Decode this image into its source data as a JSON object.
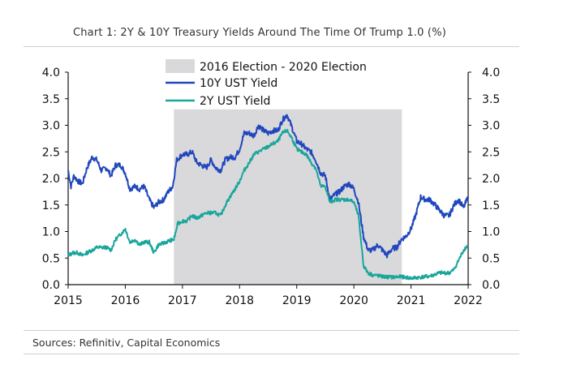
{
  "title": "Chart 1: 2Y & 10Y Treasury Yields Around The Time Of Trump 1.0 (%)",
  "source": "Sources: Refinitiv, Capital Economics",
  "colors": {
    "ten_year": "#2147bd",
    "two_year": "#1aa69b",
    "shade": "#d9d9dc"
  },
  "chart_data": {
    "type": "line",
    "xlim": [
      2015,
      2022
    ],
    "ylim": [
      0,
      4
    ],
    "x_ticks": [
      "2015",
      "2016",
      "2017",
      "2018",
      "2019",
      "2020",
      "2021",
      "2022"
    ],
    "y_ticks": [
      "0.0",
      "0.5",
      "1.0",
      "1.5",
      "2.0",
      "2.5",
      "3.0",
      "3.5",
      "4.0"
    ],
    "shaded_region": {
      "label": "2016 Election - 2020 Election",
      "x": [
        2016.85,
        2020.84
      ],
      "y_top": 3.3
    },
    "legend_position": "top-center",
    "series": [
      {
        "name": "10Y UST Yield",
        "color": "#2147bd",
        "points": [
          [
            2015.0,
            2.15
          ],
          [
            2015.05,
            1.85
          ],
          [
            2015.1,
            2.05
          ],
          [
            2015.17,
            1.95
          ],
          [
            2015.25,
            1.9
          ],
          [
            2015.33,
            2.2
          ],
          [
            2015.42,
            2.4
          ],
          [
            2015.5,
            2.35
          ],
          [
            2015.58,
            2.15
          ],
          [
            2015.67,
            2.2
          ],
          [
            2015.75,
            2.05
          ],
          [
            2015.83,
            2.25
          ],
          [
            2015.92,
            2.25
          ],
          [
            2016.0,
            2.1
          ],
          [
            2016.08,
            1.8
          ],
          [
            2016.17,
            1.85
          ],
          [
            2016.25,
            1.8
          ],
          [
            2016.33,
            1.85
          ],
          [
            2016.42,
            1.6
          ],
          [
            2016.5,
            1.45
          ],
          [
            2016.58,
            1.55
          ],
          [
            2016.67,
            1.6
          ],
          [
            2016.75,
            1.75
          ],
          [
            2016.83,
            1.85
          ],
          [
            2016.9,
            2.35
          ],
          [
            2017.0,
            2.45
          ],
          [
            2017.08,
            2.45
          ],
          [
            2017.17,
            2.5
          ],
          [
            2017.25,
            2.3
          ],
          [
            2017.33,
            2.25
          ],
          [
            2017.42,
            2.2
          ],
          [
            2017.5,
            2.35
          ],
          [
            2017.58,
            2.2
          ],
          [
            2017.67,
            2.15
          ],
          [
            2017.75,
            2.35
          ],
          [
            2017.83,
            2.4
          ],
          [
            2017.92,
            2.4
          ],
          [
            2018.0,
            2.55
          ],
          [
            2018.08,
            2.85
          ],
          [
            2018.17,
            2.85
          ],
          [
            2018.25,
            2.8
          ],
          [
            2018.33,
            3.0
          ],
          [
            2018.42,
            2.9
          ],
          [
            2018.5,
            2.85
          ],
          [
            2018.58,
            2.9
          ],
          [
            2018.67,
            2.9
          ],
          [
            2018.75,
            3.1
          ],
          [
            2018.83,
            3.2
          ],
          [
            2018.92,
            2.95
          ],
          [
            2019.0,
            2.7
          ],
          [
            2019.08,
            2.65
          ],
          [
            2019.17,
            2.55
          ],
          [
            2019.25,
            2.5
          ],
          [
            2019.33,
            2.35
          ],
          [
            2019.42,
            2.1
          ],
          [
            2019.5,
            2.05
          ],
          [
            2019.58,
            1.6
          ],
          [
            2019.67,
            1.7
          ],
          [
            2019.75,
            1.75
          ],
          [
            2019.83,
            1.85
          ],
          [
            2019.92,
            1.9
          ],
          [
            2020.0,
            1.8
          ],
          [
            2020.08,
            1.55
          ],
          [
            2020.17,
            0.9
          ],
          [
            2020.25,
            0.65
          ],
          [
            2020.33,
            0.65
          ],
          [
            2020.42,
            0.75
          ],
          [
            2020.5,
            0.65
          ],
          [
            2020.58,
            0.55
          ],
          [
            2020.67,
            0.68
          ],
          [
            2020.75,
            0.7
          ],
          [
            2020.83,
            0.85
          ],
          [
            2020.92,
            0.92
          ],
          [
            2021.0,
            1.05
          ],
          [
            2021.08,
            1.3
          ],
          [
            2021.17,
            1.65
          ],
          [
            2021.25,
            1.6
          ],
          [
            2021.33,
            1.6
          ],
          [
            2021.42,
            1.5
          ],
          [
            2021.5,
            1.4
          ],
          [
            2021.58,
            1.3
          ],
          [
            2021.67,
            1.3
          ],
          [
            2021.75,
            1.5
          ],
          [
            2021.83,
            1.6
          ],
          [
            2021.92,
            1.45
          ],
          [
            2022.0,
            1.65
          ]
        ]
      },
      {
        "name": "2Y UST Yield",
        "color": "#1aa69b",
        "points": [
          [
            2015.0,
            0.55
          ],
          [
            2015.08,
            0.6
          ],
          [
            2015.17,
            0.6
          ],
          [
            2015.25,
            0.55
          ],
          [
            2015.33,
            0.6
          ],
          [
            2015.42,
            0.65
          ],
          [
            2015.5,
            0.7
          ],
          [
            2015.58,
            0.7
          ],
          [
            2015.67,
            0.7
          ],
          [
            2015.75,
            0.65
          ],
          [
            2015.83,
            0.85
          ],
          [
            2015.92,
            0.95
          ],
          [
            2016.0,
            1.05
          ],
          [
            2016.08,
            0.8
          ],
          [
            2016.17,
            0.85
          ],
          [
            2016.25,
            0.75
          ],
          [
            2016.33,
            0.8
          ],
          [
            2016.42,
            0.8
          ],
          [
            2016.5,
            0.6
          ],
          [
            2016.58,
            0.75
          ],
          [
            2016.67,
            0.78
          ],
          [
            2016.75,
            0.82
          ],
          [
            2016.85,
            0.85
          ],
          [
            2016.92,
            1.15
          ],
          [
            2017.0,
            1.2
          ],
          [
            2017.08,
            1.2
          ],
          [
            2017.17,
            1.3
          ],
          [
            2017.25,
            1.25
          ],
          [
            2017.33,
            1.3
          ],
          [
            2017.42,
            1.35
          ],
          [
            2017.5,
            1.35
          ],
          [
            2017.58,
            1.35
          ],
          [
            2017.67,
            1.3
          ],
          [
            2017.75,
            1.5
          ],
          [
            2017.83,
            1.65
          ],
          [
            2017.92,
            1.8
          ],
          [
            2018.0,
            1.95
          ],
          [
            2018.08,
            2.15
          ],
          [
            2018.17,
            2.3
          ],
          [
            2018.25,
            2.45
          ],
          [
            2018.33,
            2.5
          ],
          [
            2018.42,
            2.55
          ],
          [
            2018.5,
            2.6
          ],
          [
            2018.58,
            2.65
          ],
          [
            2018.67,
            2.7
          ],
          [
            2018.75,
            2.85
          ],
          [
            2018.83,
            2.9
          ],
          [
            2018.92,
            2.75
          ],
          [
            2019.0,
            2.55
          ],
          [
            2019.08,
            2.5
          ],
          [
            2019.17,
            2.45
          ],
          [
            2019.25,
            2.3
          ],
          [
            2019.33,
            2.2
          ],
          [
            2019.42,
            1.85
          ],
          [
            2019.5,
            1.85
          ],
          [
            2019.58,
            1.55
          ],
          [
            2019.67,
            1.6
          ],
          [
            2019.75,
            1.6
          ],
          [
            2019.83,
            1.6
          ],
          [
            2019.92,
            1.6
          ],
          [
            2020.0,
            1.55
          ],
          [
            2020.08,
            1.3
          ],
          [
            2020.17,
            0.35
          ],
          [
            2020.25,
            0.22
          ],
          [
            2020.33,
            0.18
          ],
          [
            2020.42,
            0.17
          ],
          [
            2020.5,
            0.15
          ],
          [
            2020.67,
            0.14
          ],
          [
            2020.83,
            0.15
          ],
          [
            2021.0,
            0.12
          ],
          [
            2021.17,
            0.14
          ],
          [
            2021.33,
            0.16
          ],
          [
            2021.5,
            0.22
          ],
          [
            2021.67,
            0.22
          ],
          [
            2021.75,
            0.28
          ],
          [
            2021.83,
            0.45
          ],
          [
            2021.92,
            0.65
          ],
          [
            2022.0,
            0.75
          ]
        ]
      }
    ]
  }
}
